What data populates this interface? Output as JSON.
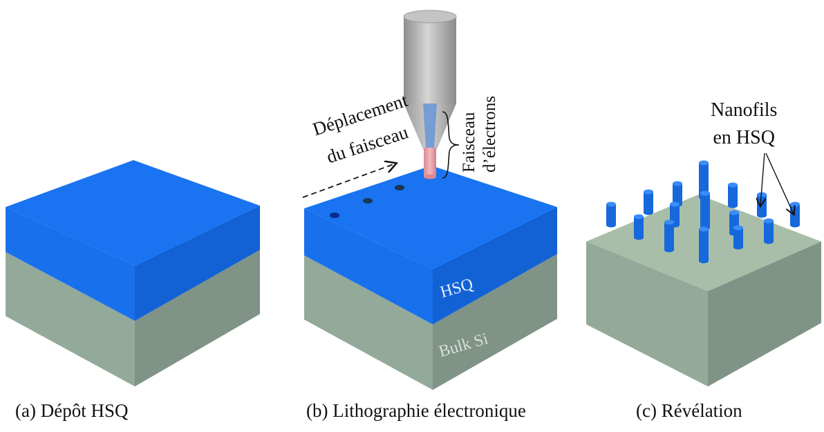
{
  "panels": {
    "a": {
      "caption": "(a) Dépôt HSQ"
    },
    "b": {
      "caption": "(b)  Lithographie  électronique",
      "beam_motion_line1": "Déplacement",
      "beam_motion_line2": "du faisceau",
      "beam_label_line1": "Faisceau",
      "beam_label_line2": "d’électrons",
      "layer_top": "HSQ",
      "layer_bottom": "Bulk Si"
    },
    "c": {
      "caption": "(c) Révélation",
      "nanowire_label_line1": "Nanofils",
      "nanowire_label_line2": "en HSQ"
    }
  },
  "colors": {
    "hsq_top": "#1a73f0",
    "hsq_side_left": "#1970ec",
    "hsq_side_right": "#1262d6",
    "si_left": "#93a99a",
    "si_right": "#7f9386",
    "si_top": "#a9bea9",
    "beam": "#e8a2a8",
    "gun": "#a8a8a8",
    "nanowire": "#1a73f0"
  }
}
